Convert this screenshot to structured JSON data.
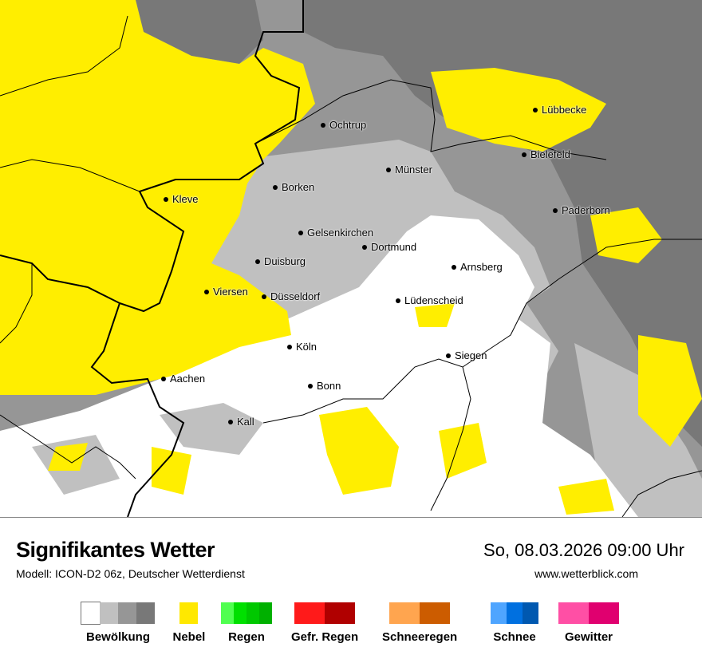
{
  "map": {
    "colors": {
      "cloud_clear": "#ffffff",
      "cloud_light": "#c0c0c0",
      "cloud_mid": "#969696",
      "cloud_dark": "#787878",
      "fog": "#ffee00",
      "border": "#000000"
    },
    "cities": [
      {
        "name": "Ochtrup"
      },
      {
        "name": "Lübbecke"
      },
      {
        "name": "Bielefeld"
      },
      {
        "name": "Münster"
      },
      {
        "name": "Borken"
      },
      {
        "name": "Kleve"
      },
      {
        "name": "Paderborn"
      },
      {
        "name": "Gelsenkirchen"
      },
      {
        "name": "Dortmund"
      },
      {
        "name": "Duisburg"
      },
      {
        "name": "Arnsberg"
      },
      {
        "name": "Viersen"
      },
      {
        "name": "Düsseldorf"
      },
      {
        "name": "Lüdenscheid"
      },
      {
        "name": "Köln"
      },
      {
        "name": "Siegen"
      },
      {
        "name": "Aachen"
      },
      {
        "name": "Bonn"
      },
      {
        "name": "Kall"
      }
    ]
  },
  "footer": {
    "title": "Signifikantes Wetter",
    "subtitle": "Modell: ICON-D2 06z, Deutscher Wetterdienst",
    "datetime": "So, 08.03.2026 09:00 Uhr",
    "website": "www.wetterblick.com"
  },
  "legend": [
    {
      "label": "Bewölkung",
      "colors": [
        "#ffffff",
        "#c0c0c0",
        "#969696",
        "#787878"
      ]
    },
    {
      "label": "Nebel",
      "colors": [
        "#ffe800"
      ]
    },
    {
      "label": "Regen",
      "colors": [
        "#50ff50",
        "#00e000",
        "#00c800",
        "#00b000"
      ]
    },
    {
      "label": "Gefr. Regen",
      "colors": [
        "#ff1a1a",
        "#b00000"
      ]
    },
    {
      "label": "Schneeregen",
      "colors": [
        "#ffa54f",
        "#cc5c00"
      ]
    },
    {
      "label": "Schnee",
      "colors": [
        "#4fa5ff",
        "#0070e0",
        "#0058b0"
      ]
    },
    {
      "label": "Gewitter",
      "colors": [
        "#ff4fa5",
        "#e0006f"
      ]
    }
  ]
}
